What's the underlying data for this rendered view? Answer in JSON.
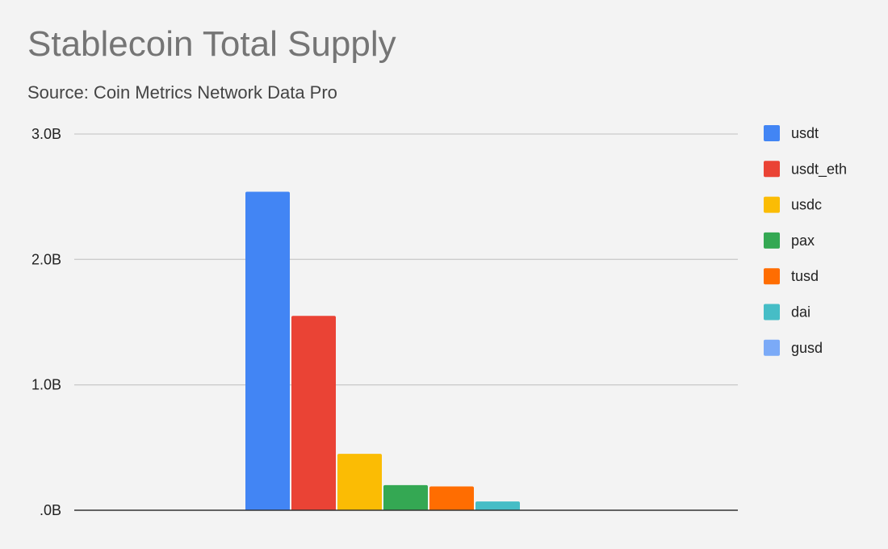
{
  "chart_data": {
    "type": "bar",
    "title": "Stablecoin Total Supply",
    "subtitle": "Source: Coin Metrics Network Data Pro",
    "xlabel": "",
    "ylabel": "",
    "ylim": [
      0,
      3000000000
    ],
    "yticks": [
      {
        "value": 0,
        "label": ".0B"
      },
      {
        "value": 1000000000,
        "label": "1.0B"
      },
      {
        "value": 2000000000,
        "label": "2.0B"
      },
      {
        "value": 3000000000,
        "label": "3.0B"
      }
    ],
    "grid": true,
    "legend_position": "right",
    "series": [
      {
        "name": "usdt",
        "color": "#4285f4",
        "value": 2540000000
      },
      {
        "name": "usdt_eth",
        "color": "#ea4335",
        "value": 1550000000
      },
      {
        "name": "usdc",
        "color": "#fbbc04",
        "value": 450000000
      },
      {
        "name": "pax",
        "color": "#34a853",
        "value": 200000000
      },
      {
        "name": "tusd",
        "color": "#ff6d01",
        "value": 190000000
      },
      {
        "name": "dai",
        "color": "#46bdc6",
        "value": 70000000
      },
      {
        "name": "gusd",
        "color": "#7baaf7",
        "value": 0
      }
    ]
  }
}
